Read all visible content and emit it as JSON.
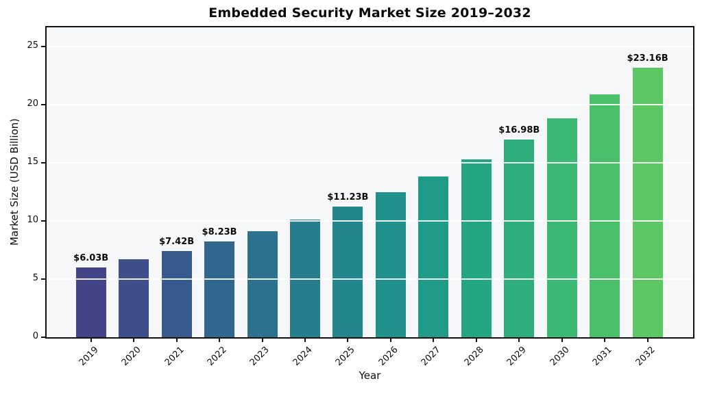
{
  "chart_data": {
    "type": "bar",
    "title": "Embedded Security Market Size 2019–2032",
    "xlabel": "Year",
    "ylabel": "Market Size (USD Billion)",
    "categories": [
      "2019",
      "2020",
      "2021",
      "2022",
      "2023",
      "2024",
      "2025",
      "2026",
      "2027",
      "2028",
      "2029",
      "2030",
      "2031",
      "2032"
    ],
    "values": [
      6.03,
      6.69,
      7.42,
      8.23,
      9.13,
      10.12,
      11.23,
      12.45,
      13.81,
      15.32,
      16.98,
      18.83,
      20.89,
      23.16
    ],
    "value_labels": [
      "$6.03B",
      null,
      "$7.42B",
      "$8.23B",
      null,
      null,
      "$11.23B",
      null,
      null,
      null,
      "$16.98B",
      null,
      null,
      "$23.16B"
    ],
    "bar_colors": [
      "#434387",
      "#3e4f8c",
      "#375b8d",
      "#31668e",
      "#2c718e",
      "#277c8e",
      "#23868d",
      "#21918b",
      "#1f9b88",
      "#24a583",
      "#2eae7d",
      "#3cb875",
      "#4bc06b",
      "#5dc863"
    ],
    "yticks": [
      0,
      5,
      10,
      15,
      20,
      25
    ],
    "ytick_labels": [
      "0",
      "5",
      "10",
      "15",
      "20",
      "25"
    ],
    "ylim": [
      0,
      26.65
    ],
    "grid": true,
    "legend": null,
    "colors": {
      "plot_background": "#f6f7f9",
      "figure_background": "#ffffff",
      "gridline": "#ffffff",
      "axis": "#121212",
      "text": "#0d0d0d"
    }
  }
}
